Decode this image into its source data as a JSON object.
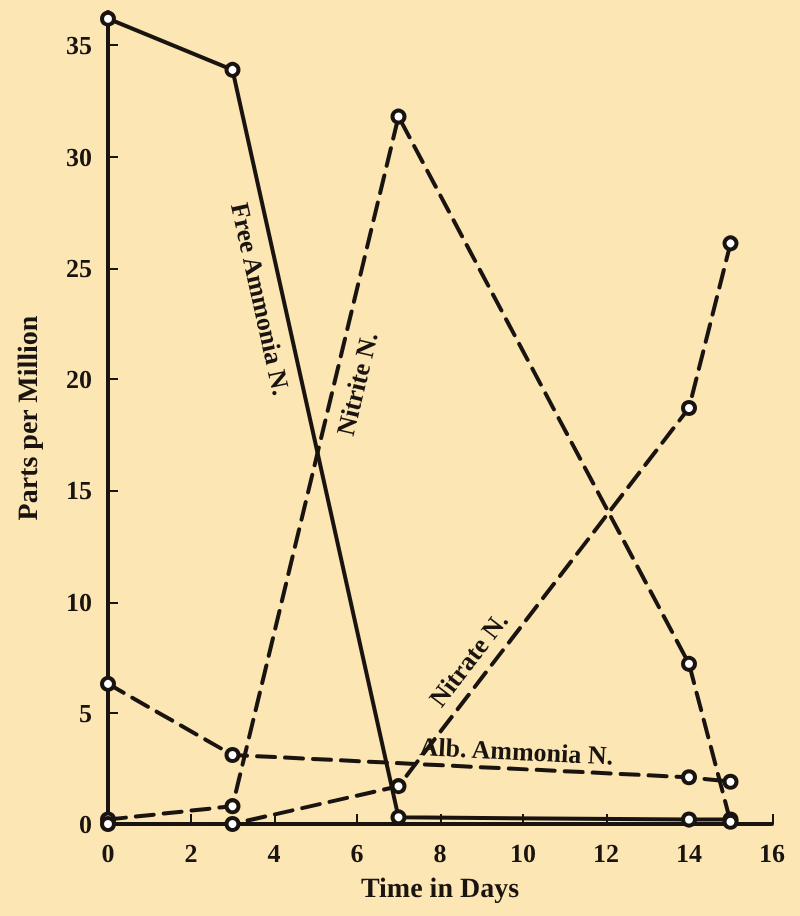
{
  "chart_data": {
    "type": "line",
    "xlabel": "Time in Days",
    "ylabel": "Parts per Million",
    "xlim": [
      0,
      16
    ],
    "xticks": [
      0,
      2,
      4,
      6,
      8,
      10,
      12,
      14,
      16
    ],
    "ylim": [
      0,
      36.5
    ],
    "yticks": [
      0,
      5,
      10,
      15,
      20,
      25,
      30,
      35
    ],
    "grid": false,
    "legend": false,
    "marker": "circle",
    "series": [
      {
        "name": "Free Ammonia N.",
        "color": "#1a1410",
        "line_style": "solid",
        "x": [
          0,
          3,
          7,
          14,
          15
        ],
        "values": [
          36.2,
          33.9,
          0.3,
          0.2,
          0.2
        ]
      },
      {
        "name": "Nitrite N.",
        "color": "#1a1410",
        "line_style": "dashed",
        "x": [
          0,
          3,
          7,
          14,
          15
        ],
        "values": [
          0.2,
          0.8,
          31.8,
          7.2,
          0.1
        ]
      },
      {
        "name": "Nitrate N.",
        "color": "#1a1410",
        "line_style": "dashed",
        "x": [
          0,
          3,
          7,
          14,
          15
        ],
        "values": [
          0,
          0,
          1.7,
          18.7,
          26.1
        ]
      },
      {
        "name": "Alb. Ammonia N.",
        "color": "#1a1410",
        "line_style": "dashed",
        "x": [
          0,
          3,
          14,
          15
        ],
        "values": [
          6.3,
          3.1,
          2.1,
          1.9
        ]
      }
    ]
  }
}
